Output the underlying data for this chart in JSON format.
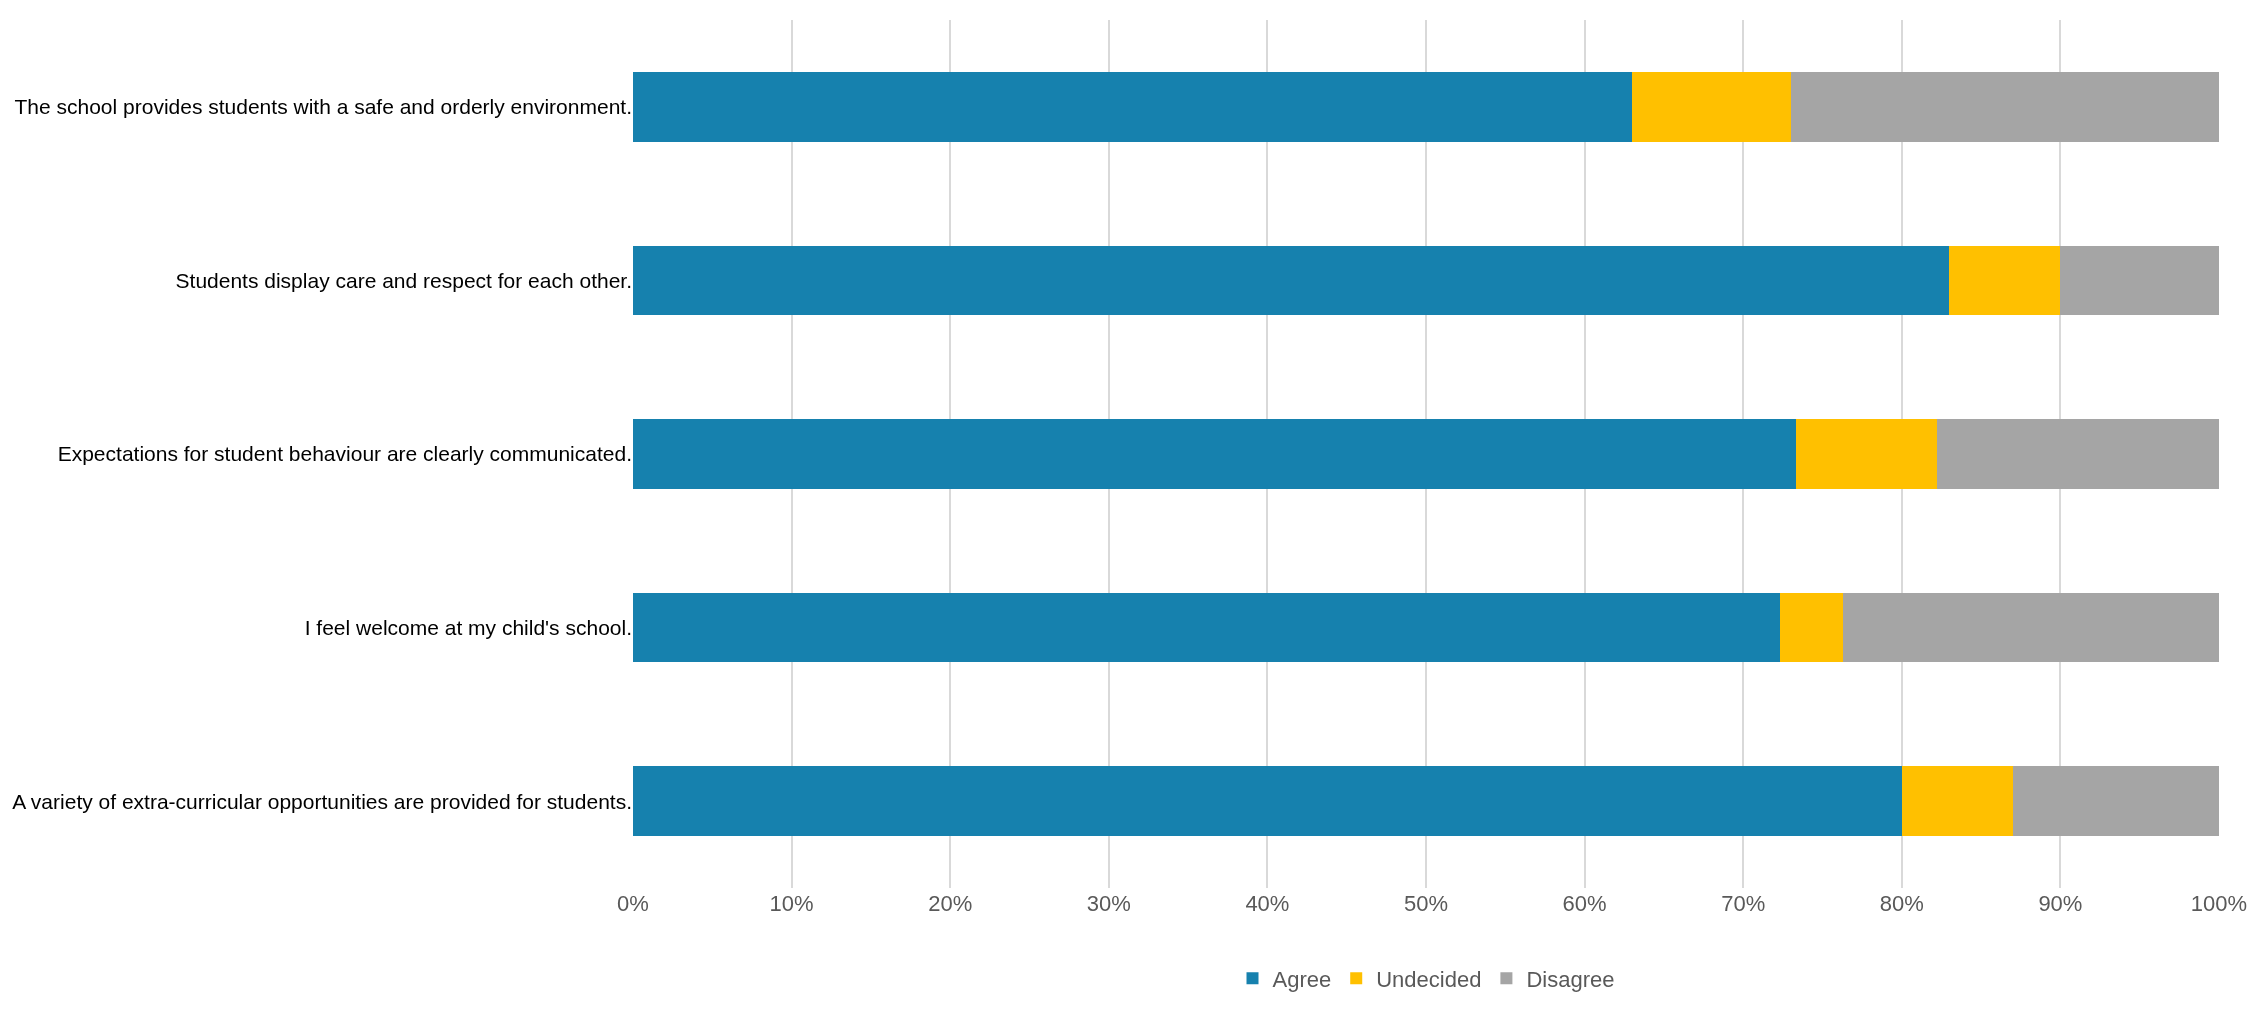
{
  "chart_data": {
    "type": "bar",
    "orientation": "horizontal",
    "stacked": true,
    "categories": [
      "The school provides students with a safe and orderly environment.",
      "Students display care and respect for each other.",
      "Expectations for student behaviour are clearly communicated.",
      "I feel welcome at my child's school.",
      "A variety of extra-curricular opportunities are provided for students."
    ],
    "series": [
      {
        "name": "Agree",
        "color": "#1681ae",
        "values": [
          63,
          83,
          73.3,
          72.3,
          80
        ]
      },
      {
        "name": "Undecided",
        "color": "#ffc000",
        "values": [
          10,
          7,
          8.9,
          4,
          7
        ]
      },
      {
        "name": "Disagree",
        "color": "#a5a5a5",
        "values": [
          27,
          10,
          17.8,
          23.7,
          13
        ]
      }
    ],
    "xlim": [
      0,
      100
    ],
    "xticks": [
      {
        "value": 0,
        "label": "0%"
      },
      {
        "value": 10,
        "label": "10%"
      },
      {
        "value": 20,
        "label": "20%"
      },
      {
        "value": 30,
        "label": "30%"
      },
      {
        "value": 40,
        "label": "40%"
      },
      {
        "value": 50,
        "label": "50%"
      },
      {
        "value": 60,
        "label": "60%"
      },
      {
        "value": 70,
        "label": "70%"
      },
      {
        "value": 80,
        "label": "80%"
      },
      {
        "value": 90,
        "label": "90%"
      },
      {
        "value": 100,
        "label": "100%"
      }
    ],
    "grid": "x",
    "legend": "bottom"
  }
}
